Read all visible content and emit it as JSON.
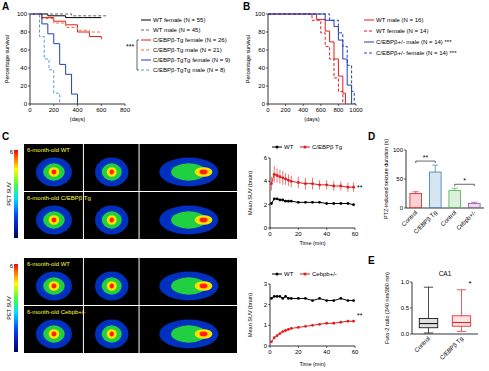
{
  "chart_data": [
    {
      "type": "step",
      "panel": "A",
      "xlabel": "(days)",
      "ylabel": "Percentage survival",
      "xlim": [
        0,
        800
      ],
      "ylim": [
        0,
        100
      ],
      "xticks": [
        0,
        200,
        400,
        600,
        800
      ],
      "yticks": [
        0,
        20,
        40,
        60,
        80,
        100
      ],
      "annotations": [
        "***"
      ],
      "series": [
        {
          "name": "WT female (N = 55)",
          "color": "#000000",
          "line_style": "solid",
          "x": [
            0,
            150,
            300,
            450,
            600
          ],
          "values": [
            100,
            98,
            96,
            96,
            96
          ]
        },
        {
          "name": "WT male (N = 45)",
          "color": "#666666",
          "line_style": "dashed",
          "x": [
            0,
            200,
            350,
            500,
            650
          ],
          "values": [
            100,
            100,
            98,
            98,
            98
          ]
        },
        {
          "name": "C/EBPβ-Tg female (N = 26)",
          "color": "#e41a1c",
          "line_style": "solid",
          "x": [
            0,
            100,
            200,
            300,
            400,
            500,
            600
          ],
          "values": [
            100,
            96,
            92,
            88,
            80,
            75,
            72
          ]
        },
        {
          "name": "C/EBPβ-Tg male (N = 21)",
          "color": "#f07030",
          "line_style": "dashed",
          "x": [
            0,
            100,
            200,
            300,
            400,
            500,
            600
          ],
          "values": [
            100,
            95,
            90,
            85,
            82,
            80,
            80
          ]
        },
        {
          "name": "C/EBPβ-TgTg female (N = 9)",
          "color": "#1f3fbf",
          "line_style": "solid",
          "x": [
            0,
            100,
            150,
            200,
            250,
            300,
            350,
            400
          ],
          "values": [
            100,
            89,
            78,
            67,
            44,
            33,
            11,
            0
          ]
        },
        {
          "name": "C/EBPβ-TgTg male (N = 8)",
          "color": "#5b9bd5",
          "line_style": "dashed",
          "x": [
            0,
            80,
            120,
            160,
            200,
            250
          ],
          "values": [
            100,
            75,
            50,
            38,
            12,
            0
          ]
        }
      ]
    },
    {
      "type": "step",
      "panel": "B",
      "xlabel": "(days)",
      "ylabel": "Percentage survival",
      "xlim": [
        0,
        1000
      ],
      "ylim": [
        0,
        100
      ],
      "xticks": [
        0,
        200,
        400,
        600,
        800,
        1000
      ],
      "yticks": [
        0,
        20,
        40,
        60,
        80,
        100
      ],
      "series": [
        {
          "name": "WT male (N = 16)",
          "color": "#e41a1c",
          "line_style": "solid",
          "x": [
            0,
            550,
            650,
            700,
            750,
            800,
            850,
            880
          ],
          "values": [
            100,
            94,
            81,
            69,
            50,
            31,
            12,
            0
          ]
        },
        {
          "name": "WT female (N = 14)",
          "color": "#e41a1c",
          "line_style": "dashed",
          "x": [
            0,
            500,
            600,
            650,
            700,
            750,
            800,
            850
          ],
          "values": [
            100,
            93,
            79,
            64,
            50,
            29,
            14,
            0
          ]
        },
        {
          "name": "C/EBPβ+/- male (N = 14) ***",
          "color": "#1f3fbf",
          "line_style": "solid",
          "x": [
            0,
            650,
            750,
            800,
            850,
            900,
            950
          ],
          "values": [
            100,
            93,
            86,
            71,
            50,
            21,
            0
          ]
        },
        {
          "name": "C/EBPβ+/- female (N = 14) ***",
          "color": "#1f3fbf",
          "line_style": "dashed",
          "x": [
            0,
            700,
            800,
            850,
            900,
            950,
            980
          ],
          "values": [
            100,
            93,
            79,
            64,
            43,
            14,
            0
          ]
        }
      ]
    },
    {
      "type": "image",
      "panel": "C",
      "labels": [
        "6-month-old WT",
        "6-month-old C/EBPβ Tg"
      ],
      "colorbar_label": "PET SUV",
      "colorbar_range": [
        0,
        6
      ],
      "colorbar_ticks": [
        6
      ]
    },
    {
      "type": "line",
      "xlabel": "Time (min)",
      "ylabel": "Mean SUV (brain)",
      "xlim": [
        0,
        60
      ],
      "ylim": [
        0,
        6
      ],
      "xticks": [
        0,
        20,
        40,
        60
      ],
      "yticks": [
        0,
        2,
        4,
        6
      ],
      "annotations": [
        "**"
      ],
      "x": [
        1,
        3,
        5,
        7,
        9,
        11,
        13,
        15,
        20,
        25,
        30,
        35,
        40,
        45,
        50,
        55,
        59
      ],
      "series": [
        {
          "name": "WT",
          "color": "#000000",
          "marker": "circle",
          "values": [
            2.1,
            2.5,
            2.5,
            2.4,
            2.4,
            2.3,
            2.3,
            2.3,
            2.2,
            2.2,
            2.2,
            2.2,
            2.1,
            2.1,
            2.1,
            2.1,
            2.0
          ]
        },
        {
          "name": "C/EBPβ Tg",
          "color": "#e41a1c",
          "marker": "circle",
          "values": [
            3.8,
            4.6,
            4.5,
            4.4,
            4.3,
            4.2,
            4.1,
            4.0,
            3.9,
            3.8,
            3.8,
            3.7,
            3.7,
            3.6,
            3.6,
            3.5,
            3.5
          ],
          "errors": [
            0.6,
            0.7,
            0.6,
            0.6,
            0.6,
            0.5,
            0.5,
            0.5,
            0.5,
            0.5,
            0.5,
            0.4,
            0.4,
            0.4,
            0.4,
            0.4,
            0.4
          ]
        }
      ]
    },
    {
      "type": "image",
      "labels": [
        "6-month-old WT",
        "6-month-old Cebpb+/-"
      ],
      "colorbar_label": "PET SUV",
      "colorbar_range": [
        0,
        6
      ],
      "colorbar_ticks": [
        6
      ]
    },
    {
      "type": "line",
      "xlabel": "Time (min)",
      "ylabel": "Mean SUV (brain)",
      "xlim": [
        0,
        60
      ],
      "ylim": [
        0,
        3
      ],
      "xticks": [
        0,
        20,
        40,
        60
      ],
      "yticks": [
        0,
        1,
        2,
        3
      ],
      "annotations": [
        "**"
      ],
      "x": [
        1,
        3,
        5,
        7,
        9,
        11,
        13,
        15,
        20,
        25,
        30,
        35,
        40,
        45,
        50,
        55,
        59
      ],
      "series": [
        {
          "name": "WT",
          "color": "#000000",
          "marker": "circle",
          "values": [
            2.3,
            2.4,
            2.4,
            2.4,
            2.3,
            2.4,
            2.3,
            2.3,
            2.3,
            2.3,
            2.2,
            2.3,
            2.2,
            2.2,
            2.3,
            2.2,
            2.2
          ]
        },
        {
          "name": "Cebpb+/-",
          "color": "#e41a1c",
          "marker": "circle",
          "values": [
            0.2,
            0.4,
            0.5,
            0.6,
            0.7,
            0.75,
            0.8,
            0.85,
            0.9,
            0.95,
            1.0,
            1.05,
            1.1,
            1.1,
            1.15,
            1.2,
            1.2
          ]
        }
      ]
    },
    {
      "type": "bar",
      "panel": "D",
      "ylabel": "PTZ-induced seizure duration (s)",
      "categories": [
        "Control",
        "C/EBPβ Tg",
        "Control",
        "Cebpb+/-"
      ],
      "values": [
        25,
        62,
        30,
        8
      ],
      "errors": [
        3,
        12,
        4,
        2
      ],
      "colors": [
        "#e41a1c",
        "#377eb8",
        "#4daf4a",
        "#984ea3"
      ],
      "ylim": [
        0,
        100
      ],
      "yticks": [
        0,
        50,
        100
      ],
      "annotations": [
        "**",
        "*"
      ]
    },
    {
      "type": "box",
      "panel": "E",
      "title": "CA1",
      "ylabel": "Fura-2 ratio (340 nm/380 nm)",
      "categories": [
        "Control",
        "C/EBPβ Tg"
      ],
      "boxes": [
        {
          "min": 0.02,
          "q1": 0.12,
          "median": 0.2,
          "q3": 0.3,
          "max": 0.9
        },
        {
          "min": 0.05,
          "q1": 0.15,
          "median": 0.22,
          "q3": 0.35,
          "max": 0.85
        }
      ],
      "colors": [
        "#000000",
        "#e41a1c"
      ],
      "ylim": [
        0,
        1
      ],
      "yticks": [
        {
          "value": 0,
          "label": "0.0"
        },
        {
          "value": 0.5,
          "label": "0.5"
        },
        {
          "value": 1,
          "label": "1.0"
        }
      ],
      "annotations": [
        "*"
      ]
    }
  ]
}
